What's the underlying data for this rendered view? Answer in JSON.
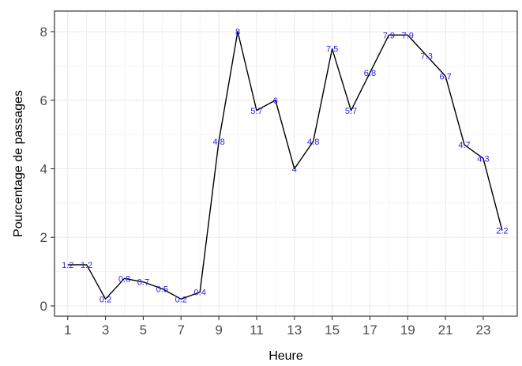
{
  "chart_data": {
    "type": "line",
    "title": "",
    "xlabel": "Heure",
    "ylabel": "Pourcentage de passages",
    "x": [
      1,
      2,
      3,
      4,
      5,
      6,
      7,
      8,
      9,
      10,
      11,
      12,
      13,
      14,
      15,
      16,
      17,
      18,
      19,
      20,
      21,
      22,
      23,
      24
    ],
    "series": [
      {
        "values": [
          1.2,
          1.2,
          0.2,
          0.8,
          0.7,
          0.5,
          0.2,
          0.4,
          4.8,
          8,
          5.7,
          6,
          4,
          4.8,
          7.5,
          5.7,
          6.8,
          7.9,
          7.9,
          7.3,
          6.7,
          4.7,
          4.3,
          2.2
        ],
        "labels": [
          "1.2",
          "1.2",
          "0.2",
          "0.8",
          "0.7",
          "0.5",
          "0.2",
          "0.4",
          "4.8",
          "8",
          "5.7",
          "6",
          "4",
          "4.8",
          "7.5",
          "5.7",
          "6.8",
          "7.9",
          "7.9",
          "7.3",
          "6.7",
          "4.7",
          "4.3",
          "2.2"
        ],
        "color": "#000000"
      }
    ],
    "label_color": "#1f1fff",
    "xlim": [
      0.3,
      24.8
    ],
    "ylim": [
      -0.3,
      8.6
    ],
    "x_ticks": [
      "1",
      "3",
      "5",
      "7",
      "9",
      "11",
      "13",
      "15",
      "17",
      "19",
      "21",
      "23"
    ],
    "y_ticks": [
      "0",
      "2",
      "4",
      "6",
      "8"
    ],
    "grid": true,
    "panel_border": true
  }
}
